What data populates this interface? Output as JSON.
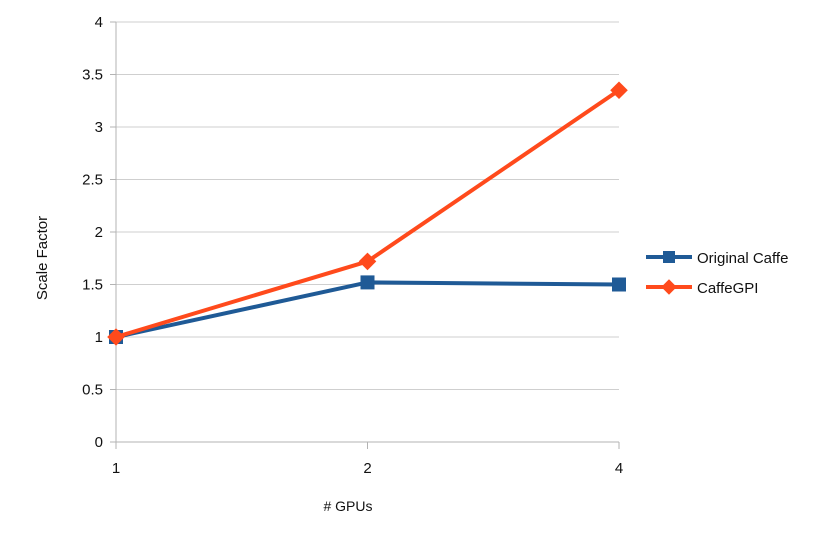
{
  "chart_data": {
    "type": "line",
    "x": [
      "1",
      "2",
      "4"
    ],
    "xlabel": "# GPUs",
    "ylabel": "Scale Factor",
    "ylim": [
      0,
      4
    ],
    "yticks": [
      "0",
      "0.5",
      "1",
      "1.5",
      "2",
      "2.5",
      "3",
      "3.5",
      "4"
    ],
    "grid": "horizontal",
    "legend_position": "right",
    "series": [
      {
        "name": "Original Caffe",
        "values": [
          1.0,
          1.52,
          1.5
        ],
        "color": "#1f5a96",
        "marker": "square"
      },
      {
        "name": "CaffeGPI",
        "values": [
          1.0,
          1.72,
          3.35
        ],
        "color": "#ff4a1c",
        "marker": "diamond"
      }
    ]
  }
}
